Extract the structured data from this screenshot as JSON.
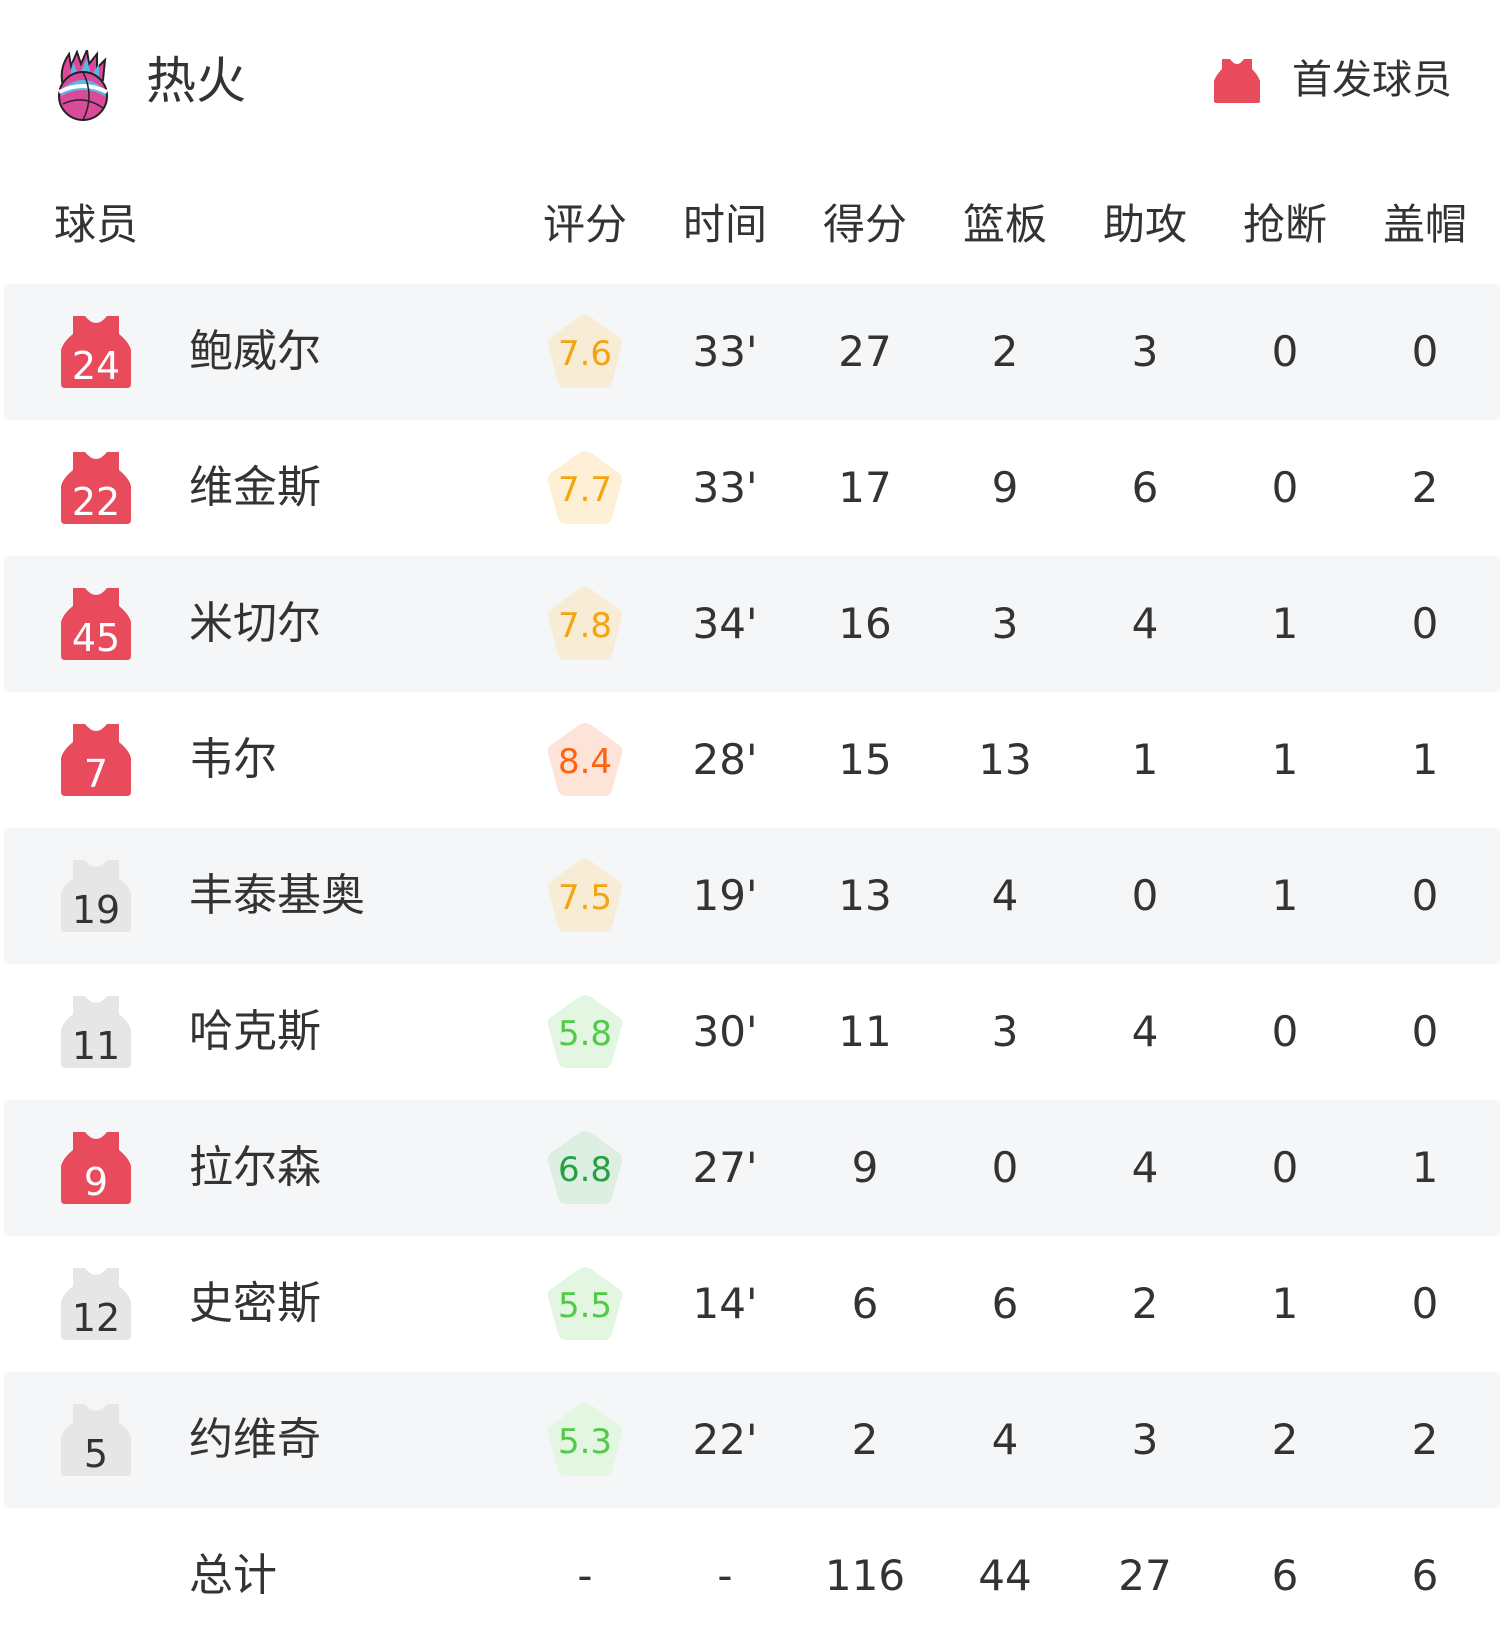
{
  "team": {
    "name": "热火",
    "logo": "heat-basketball-flame-logo"
  },
  "legend": {
    "label": "首发球员",
    "icon": "jersey-icon",
    "starter_color": "#e84c5c",
    "bench_color": "#e6e6e6"
  },
  "headers": {
    "player": "球员",
    "rating": "评分",
    "time": "时间",
    "points": "得分",
    "rebounds": "篮板",
    "assists": "助攻",
    "steals": "抢断",
    "blocks": "盖帽"
  },
  "players": [
    {
      "number": "24",
      "name": "鲍威尔",
      "starter": true,
      "rating": "7.6",
      "time": "33'",
      "points": "27",
      "rebounds": "2",
      "assists": "3",
      "steals": "0",
      "blocks": "0",
      "rating_color": "#f5a40f",
      "rating_bg": "#f7ecd6"
    },
    {
      "number": "22",
      "name": "维金斯",
      "starter": true,
      "rating": "7.7",
      "time": "33'",
      "points": "17",
      "rebounds": "9",
      "assists": "6",
      "steals": "0",
      "blocks": "2",
      "rating_color": "#f5a40f",
      "rating_bg": "#fdf0d6"
    },
    {
      "number": "45",
      "name": "米切尔",
      "starter": true,
      "rating": "7.8",
      "time": "34'",
      "points": "16",
      "rebounds": "3",
      "assists": "4",
      "steals": "1",
      "blocks": "0",
      "rating_color": "#f5a40f",
      "rating_bg": "#f7ecd6"
    },
    {
      "number": "7",
      "name": "韦尔",
      "starter": true,
      "rating": "8.4",
      "time": "28'",
      "points": "15",
      "rebounds": "13",
      "assists": "1",
      "steals": "1",
      "blocks": "1",
      "rating_color": "#ff6310",
      "rating_bg": "#fde3d8"
    },
    {
      "number": "19",
      "name": "丰泰基奥",
      "starter": false,
      "rating": "7.5",
      "time": "19'",
      "points": "13",
      "rebounds": "4",
      "assists": "0",
      "steals": "1",
      "blocks": "0",
      "rating_color": "#f5a40f",
      "rating_bg": "#f7ecd6"
    },
    {
      "number": "11",
      "name": "哈克斯",
      "starter": false,
      "rating": "5.8",
      "time": "30'",
      "points": "11",
      "rebounds": "3",
      "assists": "4",
      "steals": "0",
      "blocks": "0",
      "rating_color": "#52c947",
      "rating_bg": "#e3f6e1"
    },
    {
      "number": "9",
      "name": "拉尔森",
      "starter": true,
      "rating": "6.8",
      "time": "27'",
      "points": "9",
      "rebounds": "0",
      "assists": "4",
      "steals": "0",
      "blocks": "1",
      "rating_color": "#25a044",
      "rating_bg": "#dcefe2"
    },
    {
      "number": "12",
      "name": "史密斯",
      "starter": false,
      "rating": "5.5",
      "time": "14'",
      "points": "6",
      "rebounds": "6",
      "assists": "2",
      "steals": "1",
      "blocks": "0",
      "rating_color": "#52c947",
      "rating_bg": "#e3f6e1"
    },
    {
      "number": "5",
      "name": "约维奇",
      "starter": false,
      "rating": "5.3",
      "time": "22'",
      "points": "2",
      "rebounds": "4",
      "assists": "3",
      "steals": "2",
      "blocks": "2",
      "rating_color": "#52c947",
      "rating_bg": "#e3f6e1"
    }
  ],
  "totals": {
    "label": "总计",
    "rating": "-",
    "time": "-",
    "points": "116",
    "rebounds": "44",
    "assists": "27",
    "steals": "6",
    "blocks": "6"
  }
}
